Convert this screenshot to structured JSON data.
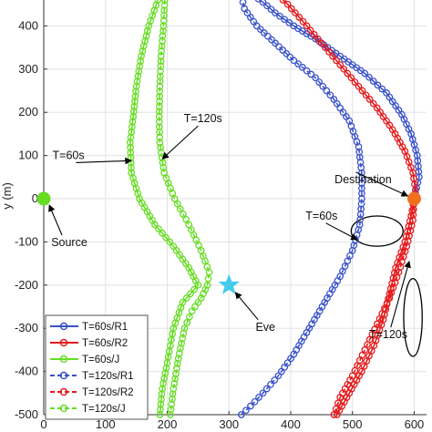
{
  "chart_data": {
    "type": "line",
    "xlabel": "",
    "ylabel": "y (m)",
    "xlim": [
      0,
      620
    ],
    "ylim": [
      -500,
      460
    ],
    "grid": true,
    "x_ticks": [
      0,
      100,
      200,
      300,
      400,
      500,
      600
    ],
    "y_ticks": [
      -500,
      -400,
      -300,
      -200,
      -100,
      0,
      100,
      200,
      300,
      400
    ],
    "legend_position": "bottom-left",
    "colors": {
      "blue": "#3a52c9",
      "red": "#e41a1c",
      "green": "#66dd22",
      "source": "#66dd22",
      "destination": "#f07020",
      "eve": "#44ccee",
      "ellipse": "#000000"
    },
    "series": [
      {
        "name": "T=60s/R1",
        "color": "blue",
        "dash": false,
        "points": [
          [
            340,
            470
          ],
          [
            355,
            455
          ],
          [
            375,
            430
          ],
          [
            405,
            400
          ],
          [
            440,
            370
          ],
          [
            480,
            330
          ],
          [
            520,
            290
          ],
          [
            555,
            245
          ],
          [
            580,
            195
          ],
          [
            595,
            150
          ],
          [
            605,
            100
          ],
          [
            608,
            50
          ],
          [
            600,
            0
          ]
        ]
      },
      {
        "name": "T=60s/R2",
        "color": "red",
        "dash": false,
        "points": [
          [
            380,
            470
          ],
          [
            395,
            450
          ],
          [
            420,
            410
          ],
          [
            450,
            360
          ],
          [
            480,
            310
          ],
          [
            510,
            260
          ],
          [
            540,
            210
          ],
          [
            565,
            160
          ],
          [
            585,
            110
          ],
          [
            598,
            60
          ],
          [
            602,
            20
          ],
          [
            600,
            0
          ],
          [
            595,
            -40
          ],
          [
            585,
            -100
          ],
          [
            570,
            -160
          ],
          [
            560,
            -220
          ],
          [
            550,
            -280
          ],
          [
            535,
            -340
          ],
          [
            515,
            -400
          ],
          [
            495,
            -450
          ],
          [
            475,
            -500
          ]
        ]
      },
      {
        "name": "T=60s/J",
        "color": "green",
        "dash": false,
        "points": [
          [
            185,
            460
          ],
          [
            170,
            400
          ],
          [
            158,
            330
          ],
          [
            150,
            260
          ],
          [
            145,
            190
          ],
          [
            140,
            130
          ],
          [
            142,
            60
          ],
          [
            155,
            0
          ],
          [
            180,
            -60
          ],
          [
            210,
            -110
          ],
          [
            235,
            -160
          ],
          [
            250,
            -200
          ],
          [
            225,
            -240
          ],
          [
            210,
            -300
          ],
          [
            200,
            -380
          ],
          [
            192,
            -440
          ],
          [
            188,
            -500
          ]
        ]
      },
      {
        "name": "T=120s/R1",
        "color": "blue",
        "dash": true,
        "points": [
          [
            320,
            470
          ],
          [
            325,
            440
          ],
          [
            345,
            400
          ],
          [
            375,
            360
          ],
          [
            405,
            320
          ],
          [
            440,
            280
          ],
          [
            470,
            230
          ],
          [
            495,
            180
          ],
          [
            510,
            120
          ],
          [
            515,
            60
          ],
          [
            515,
            0
          ],
          [
            512,
            -60
          ],
          [
            500,
            -120
          ],
          [
            480,
            -180
          ],
          [
            455,
            -240
          ],
          [
            430,
            -300
          ],
          [
            405,
            -360
          ],
          [
            380,
            -410
          ],
          [
            355,
            -450
          ],
          [
            335,
            -480
          ],
          [
            320,
            -500
          ]
        ]
      },
      {
        "name": "T=120s/R2",
        "color": "red",
        "dash": true,
        "points": [
          [
            600,
            0
          ],
          [
            598,
            -50
          ],
          [
            588,
            -110
          ],
          [
            575,
            -170
          ],
          [
            560,
            -230
          ],
          [
            540,
            -290
          ],
          [
            520,
            -350
          ],
          [
            500,
            -410
          ],
          [
            480,
            -460
          ],
          [
            470,
            -500
          ]
        ]
      },
      {
        "name": "T=120s/J",
        "color": "green",
        "dash": true,
        "points": [
          [
            196,
            460
          ],
          [
            194,
            400
          ],
          [
            190,
            330
          ],
          [
            188,
            260
          ],
          [
            187,
            190
          ],
          [
            188,
            130
          ],
          [
            195,
            60
          ],
          [
            212,
            0
          ],
          [
            235,
            -60
          ],
          [
            255,
            -120
          ],
          [
            268,
            -170
          ],
          [
            265,
            -200
          ],
          [
            255,
            -230
          ],
          [
            240,
            -260
          ],
          [
            228,
            -300
          ],
          [
            218,
            -370
          ],
          [
            210,
            -440
          ],
          [
            205,
            -500
          ]
        ]
      }
    ],
    "markers": [
      {
        "name": "source-marker",
        "label": "Source",
        "x": 0,
        "y": 0,
        "shape": "circle",
        "color": "source"
      },
      {
        "name": "destination-marker",
        "label": "Destination",
        "x": 600,
        "y": 0,
        "shape": "circle",
        "color": "destination"
      },
      {
        "name": "eve-marker",
        "label": "Eve",
        "x": 300,
        "y": -200,
        "shape": "star",
        "color": "eve"
      }
    ],
    "annotations": [
      {
        "name": "annotation-t60-j",
        "text": "T=60s",
        "text_x": 40,
        "text_y": 92,
        "arrow_to": [
          142,
          88
        ]
      },
      {
        "name": "annotation-t120-j",
        "text": "T=120s",
        "text_x": 258,
        "text_y": 177,
        "arrow_to": [
          192,
          92
        ]
      },
      {
        "name": "annotation-t60-r",
        "text": "T=60s",
        "text_x": 450,
        "text_y": -48,
        "arrow_to": [
          508,
          -95
        ]
      },
      {
        "name": "annotation-t120-r",
        "text": "T=120s",
        "text_x": 558,
        "text_y": -323,
        "arrow_to": [
          592,
          -145
        ]
      }
    ],
    "ellipses": [
      {
        "name": "ellipse-t60",
        "cx": 540,
        "cy": -75,
        "rx": 42,
        "ry": 35
      },
      {
        "name": "ellipse-t120",
        "cx": 598,
        "cy": -275,
        "rx": 15,
        "ry": 90
      }
    ]
  }
}
